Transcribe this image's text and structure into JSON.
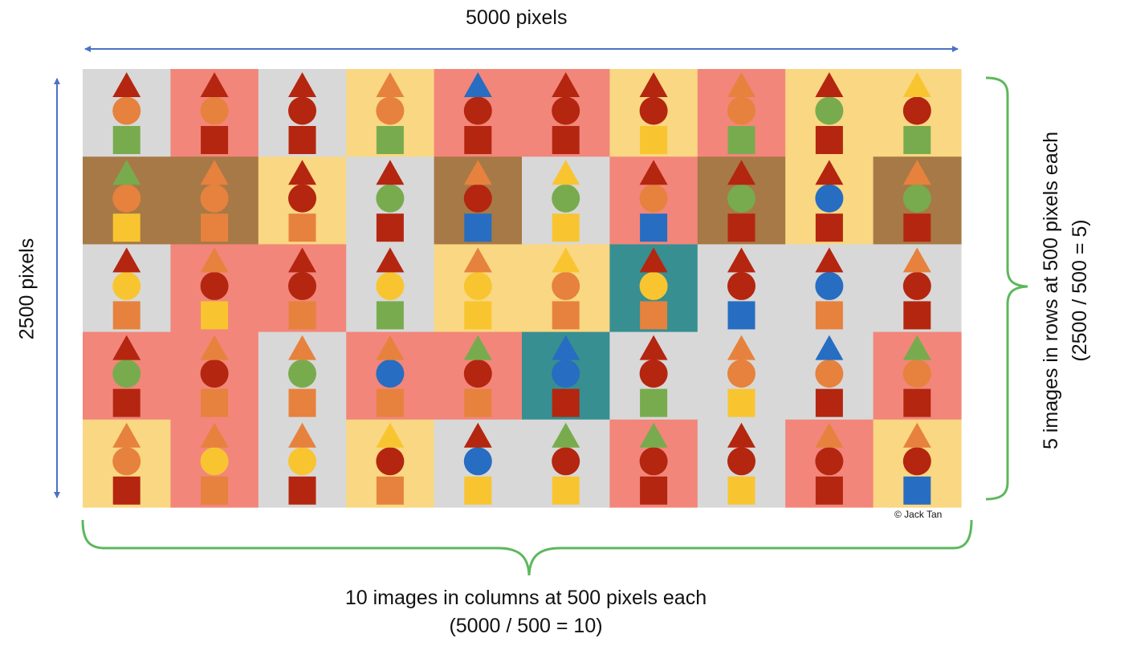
{
  "labels": {
    "width_label": "5000 pixels",
    "height_label": "2500 pixels",
    "columns_line1": "10 images in columns at 500 pixels each",
    "columns_line2": "(5000 / 500 = 10)",
    "rows_line1": "5 images in rows at 500 pixels each",
    "rows_line2": "(2500 / 500 = 5)",
    "copyright": "© Jack Tan"
  },
  "colors": {
    "gray": "#d8d8d8",
    "salmon": "#f2867a",
    "cream": "#f9d783",
    "brown": "#a77946",
    "teal": "#378f91",
    "darkred": "#b4260f",
    "orange": "#e6823d",
    "green": "#78ab4e",
    "yellow": "#f8c531",
    "blue": "#276dc2",
    "arrow_blue": "#4a72c4",
    "brace_green": "#5cb85c"
  },
  "grid": [
    [
      {
        "bg": "gray",
        "tri": "darkred",
        "cir": "orange",
        "sq": "green"
      },
      {
        "bg": "salmon",
        "tri": "darkred",
        "cir": "orange",
        "sq": "darkred"
      },
      {
        "bg": "gray",
        "tri": "darkred",
        "cir": "darkred",
        "sq": "darkred"
      },
      {
        "bg": "cream",
        "tri": "orange",
        "cir": "orange",
        "sq": "green"
      },
      {
        "bg": "salmon",
        "tri": "blue",
        "cir": "darkred",
        "sq": "darkred"
      },
      {
        "bg": "salmon",
        "tri": "darkred",
        "cir": "darkred",
        "sq": "darkred"
      },
      {
        "bg": "cream",
        "tri": "darkred",
        "cir": "darkred",
        "sq": "yellow"
      },
      {
        "bg": "salmon",
        "tri": "orange",
        "cir": "orange",
        "sq": "green"
      },
      {
        "bg": "cream",
        "tri": "darkred",
        "cir": "green",
        "sq": "darkred"
      },
      {
        "bg": "cream",
        "tri": "yellow",
        "cir": "darkred",
        "sq": "green"
      }
    ],
    [
      {
        "bg": "brown",
        "tri": "green",
        "cir": "orange",
        "sq": "yellow"
      },
      {
        "bg": "brown",
        "tri": "orange",
        "cir": "orange",
        "sq": "orange"
      },
      {
        "bg": "cream",
        "tri": "darkred",
        "cir": "darkred",
        "sq": "orange"
      },
      {
        "bg": "gray",
        "tri": "darkred",
        "cir": "green",
        "sq": "darkred"
      },
      {
        "bg": "brown",
        "tri": "orange",
        "cir": "darkred",
        "sq": "blue"
      },
      {
        "bg": "gray",
        "tri": "yellow",
        "cir": "green",
        "sq": "yellow"
      },
      {
        "bg": "salmon",
        "tri": "darkred",
        "cir": "orange",
        "sq": "blue"
      },
      {
        "bg": "brown",
        "tri": "darkred",
        "cir": "green",
        "sq": "darkred"
      },
      {
        "bg": "cream",
        "tri": "darkred",
        "cir": "blue",
        "sq": "darkred"
      },
      {
        "bg": "brown",
        "tri": "orange",
        "cir": "green",
        "sq": "darkred"
      }
    ],
    [
      {
        "bg": "gray",
        "tri": "darkred",
        "cir": "yellow",
        "sq": "orange"
      },
      {
        "bg": "salmon",
        "tri": "orange",
        "cir": "darkred",
        "sq": "yellow"
      },
      {
        "bg": "salmon",
        "tri": "darkred",
        "cir": "darkred",
        "sq": "orange"
      },
      {
        "bg": "gray",
        "tri": "darkred",
        "cir": "yellow",
        "sq": "green"
      },
      {
        "bg": "cream",
        "tri": "orange",
        "cir": "yellow",
        "sq": "yellow"
      },
      {
        "bg": "cream",
        "tri": "yellow",
        "cir": "orange",
        "sq": "orange"
      },
      {
        "bg": "teal",
        "tri": "darkred",
        "cir": "yellow",
        "sq": "orange"
      },
      {
        "bg": "gray",
        "tri": "darkred",
        "cir": "darkred",
        "sq": "blue"
      },
      {
        "bg": "gray",
        "tri": "darkred",
        "cir": "blue",
        "sq": "orange"
      },
      {
        "bg": "gray",
        "tri": "orange",
        "cir": "darkred",
        "sq": "darkred"
      }
    ],
    [
      {
        "bg": "salmon",
        "tri": "darkred",
        "cir": "green",
        "sq": "darkred"
      },
      {
        "bg": "salmon",
        "tri": "orange",
        "cir": "darkred",
        "sq": "orange"
      },
      {
        "bg": "gray",
        "tri": "orange",
        "cir": "green",
        "sq": "orange"
      },
      {
        "bg": "salmon",
        "tri": "orange",
        "cir": "blue",
        "sq": "orange"
      },
      {
        "bg": "salmon",
        "tri": "green",
        "cir": "darkred",
        "sq": "orange"
      },
      {
        "bg": "teal",
        "tri": "blue",
        "cir": "blue",
        "sq": "darkred"
      },
      {
        "bg": "gray",
        "tri": "darkred",
        "cir": "darkred",
        "sq": "green"
      },
      {
        "bg": "gray",
        "tri": "orange",
        "cir": "orange",
        "sq": "yellow"
      },
      {
        "bg": "gray",
        "tri": "blue",
        "cir": "orange",
        "sq": "darkred"
      },
      {
        "bg": "salmon",
        "tri": "green",
        "cir": "orange",
        "sq": "darkred"
      }
    ],
    [
      {
        "bg": "cream",
        "tri": "orange",
        "cir": "orange",
        "sq": "darkred"
      },
      {
        "bg": "salmon",
        "tri": "orange",
        "cir": "yellow",
        "sq": "orange"
      },
      {
        "bg": "gray",
        "tri": "orange",
        "cir": "yellow",
        "sq": "darkred"
      },
      {
        "bg": "cream",
        "tri": "yellow",
        "cir": "darkred",
        "sq": "orange"
      },
      {
        "bg": "gray",
        "tri": "darkred",
        "cir": "blue",
        "sq": "yellow"
      },
      {
        "bg": "gray",
        "tri": "green",
        "cir": "darkred",
        "sq": "yellow"
      },
      {
        "bg": "salmon",
        "tri": "green",
        "cir": "darkred",
        "sq": "darkred"
      },
      {
        "bg": "gray",
        "tri": "darkred",
        "cir": "darkred",
        "sq": "yellow"
      },
      {
        "bg": "salmon",
        "tri": "orange",
        "cir": "darkred",
        "sq": "darkred"
      },
      {
        "bg": "cream",
        "tri": "orange",
        "cir": "darkred",
        "sq": "blue"
      }
    ]
  ]
}
